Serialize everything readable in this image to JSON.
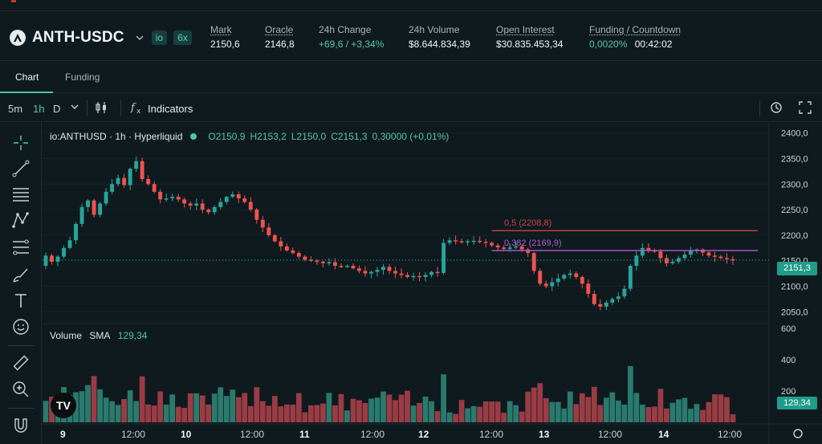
{
  "header": {
    "pair": "ANTH-USDC",
    "tags": [
      "io",
      "6x"
    ],
    "stats": [
      {
        "label": "Mark",
        "value": "2150,6"
      },
      {
        "label": "Oracle",
        "value": "2146,8"
      },
      {
        "label": "24h Change",
        "value": "+69,6 / +3,34%"
      },
      {
        "label": "24h Volume",
        "value": "$8.644.834,39"
      },
      {
        "label": "Open Interest",
        "value": "$30.835.453,34"
      },
      {
        "label": "Funding / Countdown",
        "value": "0,0020%",
        "value2": "00:42:02"
      }
    ]
  },
  "tabs": [
    "Chart",
    "Funding"
  ],
  "toolbar": {
    "timeframes": [
      "5m",
      "1h",
      "D"
    ],
    "indicators_label": "Indicators"
  },
  "legend": {
    "symbol": "io:ANTHUSD · 1h · Hyperliquid",
    "o": "O2150,9",
    "h": "H2153,2",
    "l": "L2150,0",
    "c": "C2151,3",
    "chg": "0,30000 (+0,01%)"
  },
  "volume_legend": {
    "label": "Volume",
    "sma_label": "SMA",
    "sma_value": "129,34"
  },
  "price_tag": "2151,3",
  "volume_tag": "129,34",
  "fib_levels": [
    {
      "label": "0,5 (2208,8)",
      "value": 2208.8,
      "color": "#c94545"
    },
    {
      "label": "0,382 (2169,9)",
      "value": 2169.9,
      "color": "#b25ad6"
    }
  ],
  "colors": {
    "up": "#26a69a",
    "down": "#ef5350",
    "vol_up": "#2a7a6e",
    "vol_down": "#9a3c44"
  },
  "chart_data": {
    "type": "candlestick",
    "price_axis": {
      "ticks": [
        "2400,0",
        "2350,0",
        "2300,0",
        "2250,0",
        "2200,0",
        "2150,0",
        "2100,0",
        "2050,0"
      ],
      "range": [
        2030,
        2420
      ]
    },
    "volume_axis": {
      "ticks": [
        "600",
        "400",
        "200"
      ],
      "range": [
        0,
        620
      ]
    },
    "time_axis": [
      "9",
      "12:00",
      "10",
      "12:00",
      "11",
      "12:00",
      "12",
      "12:00",
      "13",
      "12:00",
      "14",
      "12:00"
    ],
    "last_price": 2151.3,
    "candles": [
      2160,
      2148,
      2158,
      2175,
      2190,
      2222,
      2255,
      2268,
      2240,
      2262,
      2285,
      2300,
      2312,
      2298,
      2330,
      2345,
      2310,
      2300,
      2285,
      2270,
      2272,
      2275,
      2270,
      2262,
      2258,
      2262,
      2250,
      2245,
      2255,
      2265,
      2275,
      2280,
      2272,
      2265,
      2250,
      2230,
      2215,
      2200,
      2188,
      2178,
      2170,
      2165,
      2158,
      2152,
      2150,
      2148,
      2145,
      2147,
      2140,
      2138,
      2140,
      2135,
      2130,
      2125,
      2128,
      2132,
      2138,
      2130,
      2125,
      2122,
      2118,
      2120,
      2118,
      2122,
      2128,
      2126,
      2185,
      2190,
      2188,
      2187,
      2188,
      2189,
      2187,
      2185,
      2180,
      2176,
      2173,
      2176,
      2178,
      2172,
      2165,
      2130,
      2105,
      2100,
      2108,
      2115,
      2122,
      2125,
      2118,
      2105,
      2085,
      2065,
      2060,
      2068,
      2075,
      2080,
      2095,
      2140,
      2160,
      2175,
      2170,
      2168,
      2155,
      2145,
      2148,
      2155,
      2162,
      2170,
      2172,
      2166,
      2160,
      2158,
      2155,
      2153,
      2151
    ]
  }
}
